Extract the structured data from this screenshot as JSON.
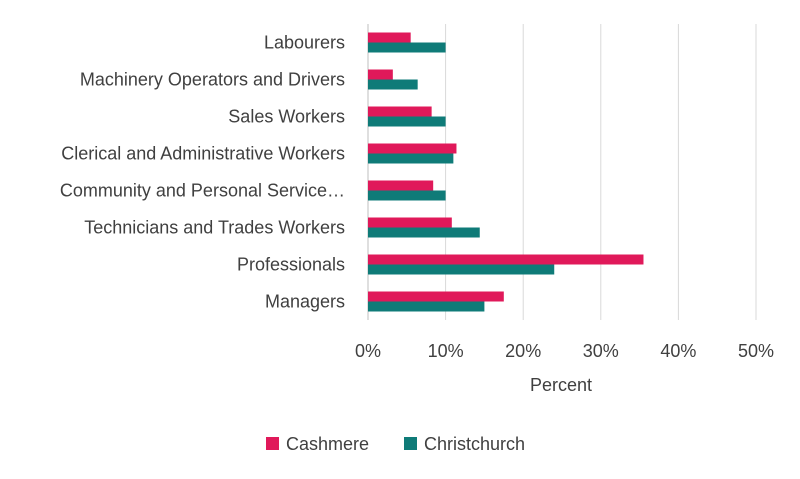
{
  "chart_data": {
    "type": "bar",
    "orientation": "horizontal",
    "categories": [
      "Labourers",
      "Machinery Operators and Drivers",
      "Sales Workers",
      "Clerical and Administrative Workers",
      "Community and Personal Service…",
      "Technicians and Trades Workers",
      "Professionals",
      "Managers"
    ],
    "series": [
      {
        "name": "Cashmere",
        "color": "#e0195a",
        "values": [
          5.5,
          3.2,
          8.2,
          11.4,
          8.4,
          10.8,
          35.5,
          17.5
        ]
      },
      {
        "name": "Christchurch",
        "color": "#0f7b78",
        "values": [
          10.0,
          6.4,
          10.0,
          11.0,
          10.0,
          14.4,
          24.0,
          15.0
        ]
      }
    ],
    "xlabel": "Percent",
    "xlim": [
      0,
      50
    ],
    "xticks": [
      0,
      10,
      20,
      30,
      40,
      50
    ],
    "xtick_labels": [
      "0%",
      "10%",
      "20%",
      "30%",
      "40%",
      "50%"
    ],
    "grid": "vertical",
    "legend": "bottom-center"
  }
}
